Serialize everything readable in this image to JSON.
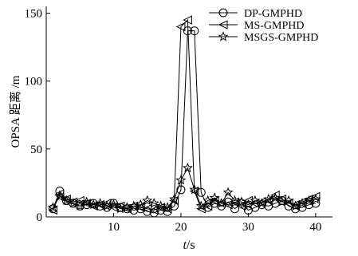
{
  "chart_data": {
    "type": "line",
    "xlabel_var": "t",
    "xlabel_unit": "/s",
    "ylabel": "OPSA 距离 /m",
    "xlim": [
      0,
      42.5
    ],
    "ylim": [
      0,
      155
    ],
    "x_ticks": [
      "10",
      "20",
      "30",
      "40"
    ],
    "y_ticks": [
      "0",
      "50",
      "100",
      "150"
    ],
    "legend_position": "top-right",
    "grid": false,
    "x": [
      1,
      2,
      3,
      4,
      5,
      6,
      7,
      8,
      9,
      10,
      11,
      12,
      13,
      14,
      15,
      16,
      17,
      18,
      19,
      20,
      21,
      22,
      23,
      24,
      25,
      26,
      27,
      28,
      29,
      30,
      31,
      32,
      33,
      34,
      35,
      36,
      37,
      38,
      39,
      40
    ],
    "series": [
      {
        "name": "DP-GMPHD",
        "marker": "circle",
        "values": [
          6,
          19,
          12,
          10,
          8,
          9,
          10,
          8,
          7,
          10,
          7,
          6,
          5,
          6,
          4,
          3,
          5,
          4,
          8,
          20,
          137,
          137,
          18,
          7,
          10,
          8,
          11,
          6,
          10,
          5,
          7,
          9,
          8,
          10,
          12,
          8,
          6,
          7,
          9,
          10
        ]
      },
      {
        "name": "MS-GMPHD",
        "marker": "triangle-left",
        "values": [
          5,
          17,
          13,
          11,
          12,
          10,
          8,
          9,
          10,
          7,
          8,
          6,
          8,
          7,
          6,
          5,
          7,
          6,
          12,
          140,
          145,
          19,
          6,
          8,
          12,
          10,
          9,
          11,
          8,
          12,
          10,
          11,
          12,
          16,
          13,
          10,
          9,
          11,
          13,
          15
        ]
      },
      {
        "name": "MSGS-GMPHD",
        "marker": "star",
        "values": [
          7,
          15,
          12,
          10,
          8,
          11,
          9,
          10,
          8,
          9,
          6,
          7,
          8,
          9,
          12,
          10,
          8,
          7,
          13,
          27,
          36,
          20,
          8,
          12,
          14,
          10,
          18,
          12,
          11,
          9,
          12,
          10,
          13,
          14,
          11,
          12,
          8,
          10,
          12,
          13
        ]
      }
    ]
  }
}
